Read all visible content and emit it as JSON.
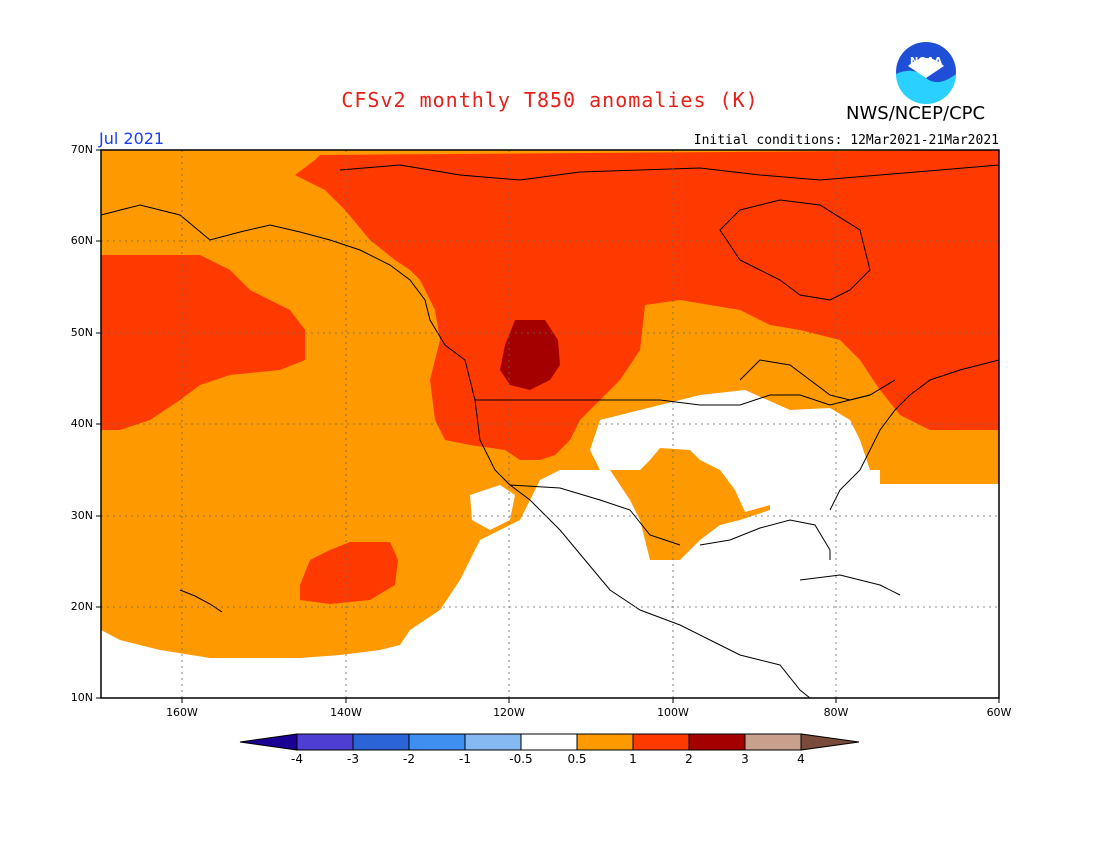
{
  "title": "CFSv2 monthly T850 anomalies (K)",
  "agency": "NWS/NCEP/CPC",
  "logo_text": "NOAA",
  "month": "Jul 2021",
  "initial_conditions": "Initial conditions: 12Mar2021-21Mar2021",
  "lat_labels": [
    "70N",
    "60N",
    "50N",
    "40N",
    "30N",
    "20N",
    "10N"
  ],
  "lon_labels": [
    "160W",
    "140W",
    "120W",
    "100W",
    "80W",
    "60W"
  ],
  "colorbar": {
    "labels": [
      "-4",
      "-3",
      "-2",
      "-1",
      "-0.5",
      "0.5",
      "1",
      "2",
      "3",
      "4"
    ],
    "colors": [
      "#1b0094",
      "#4f3ed2",
      "#2a64d6",
      "#3e8ff0",
      "#86b8f2",
      "#ffffff",
      "#ff9900",
      "#ff3a00",
      "#a50000",
      "#c9a08c",
      "#7a4b3a"
    ]
  },
  "colors": {
    "title": "#e8201a",
    "month": "#1a3cff",
    "anom_0_5_to_1": "#ff9900",
    "anom_1_to_2": "#ff3a00",
    "anom_2_to_3": "#a50000",
    "neutral": "#ffffff"
  }
}
